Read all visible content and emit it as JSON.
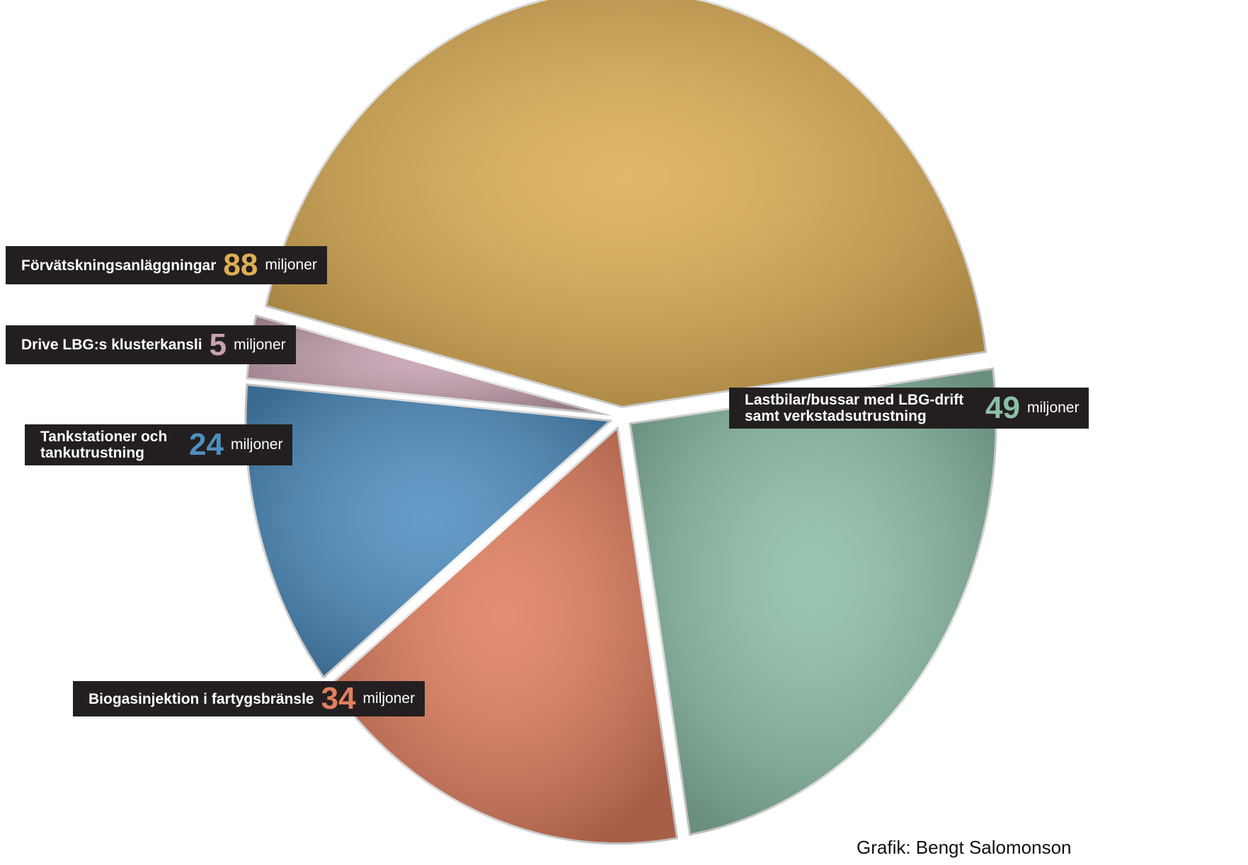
{
  "chart_data": {
    "type": "pie",
    "categories": [
      "Förvätskningsanläggningar",
      "Lastbilar/bussar med LBG-drift samt verkstadsutrustning",
      "Biogasinjektion i fartygsbränsle",
      "Tankstationer och tankutrustning",
      "Drive LBG:s klusterkansli"
    ],
    "values": [
      88,
      49,
      34,
      24,
      5
    ],
    "colors": [
      "#dcae55",
      "#8dbfa6",
      "#e07f5f",
      "#4f8ec0",
      "#c7a2b2"
    ],
    "unit": "miljoner",
    "credit": "Grafik: Bengt Salomonson"
  }
}
